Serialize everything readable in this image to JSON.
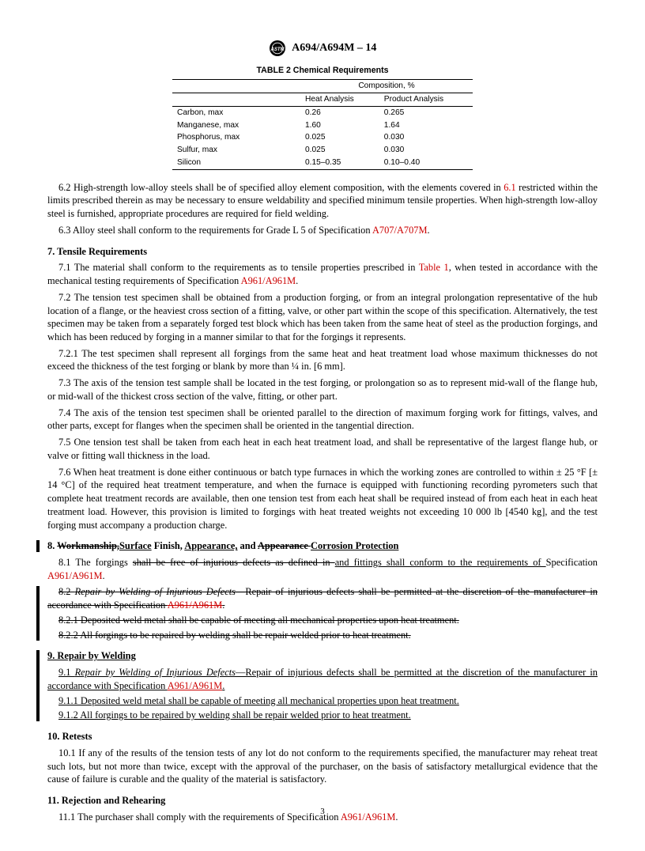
{
  "header": {
    "std": "A694/A694M – 14"
  },
  "table2": {
    "title": "TABLE 2 Chemical Requirements",
    "comp_label": "Composition, %",
    "col_heat": "Heat Analysis",
    "col_product": "Product Analysis",
    "rows": [
      {
        "name": "Carbon, max",
        "heat": "0.26",
        "product": "0.265"
      },
      {
        "name": "Manganese, max",
        "heat": "1.60",
        "product": "1.64"
      },
      {
        "name": "Phosphorus, max",
        "heat": "0.025",
        "product": "0.030"
      },
      {
        "name": "Sulfur, max",
        "heat": "0.025",
        "product": "0.030"
      },
      {
        "name": "Silicon",
        "heat": "0.15–0.35",
        "product": "0.10–0.40"
      }
    ]
  },
  "refs": {
    "r61": "6.1",
    "a707": "A707/A707M",
    "a961": "A961/A961M",
    "table1": "Table 1"
  },
  "p62a": "6.2 High-strength low-alloy steels shall be of specified alloy element composition, with the elements covered in ",
  "p62b": " restricted within the limits prescribed therein as may be necessary to ensure weldability and specified minimum tensile properties. When high-strength low-alloy steel is furnished, appropriate procedures are required for field welding.",
  "p63a": "6.3 Alloy steel shall conform to the requirements for Grade L 5 of Specification ",
  "s7": "7. Tensile Requirements",
  "p71a": "7.1 The material shall conform to the requirements as to tensile properties prescribed in ",
  "p71b": ", when tested in accordance with the mechanical testing requirements of Specification ",
  "p72": "7.2 The tension test specimen shall be obtained from a production forging, or from an integral prolongation representative of the hub location of a flange, or the heaviest cross section of a fitting, valve, or other part within the scope of this specification. Alternatively, the test specimen may be taken from a separately forged test block which has been taken from the same heat of steel as the production forgings, and which has been reduced by forging in a manner similar to that for the forgings it represents.",
  "p721": "7.2.1 The test specimen shall represent all forgings from the same heat and heat treatment load whose maximum thicknesses do not exceed the thickness of the test forging or blank by more than ¼ in. [6 mm].",
  "p73": "7.3 The axis of the tension test sample shall be located in the test forging, or prolongation so as to represent mid-wall of the flange hub, or mid-wall of the thickest cross section of the valve, fitting, or other part.",
  "p74": "7.4 The axis of the tension test specimen shall be oriented parallel to the direction of maximum forging work for fittings, valves, and other parts, except for flanges when the specimen shall be oriented in the tangential direction.",
  "p75": "7.5 One tension test shall be taken from each heat in each heat treatment load, and shall be representative of the largest flange hub, or valve or fitting wall thickness in the load.",
  "p76": "7.6 When heat treatment is done either continuous or batch type furnaces in which the working zones are controlled to within ± 25 °F [± 14 °C] of the required heat treatment temperature, and when the furnace is equipped with functioning recording pyrometers such that complete heat treatment records are available, then one tension test from each heat shall be required instead of from each heat in each heat treatment load. However, this provision is limited to forgings with heat treated weights not exceeding 10 000 lb [4540 kg], and the test forging must accompany a production charge.",
  "s8_num": "8. ",
  "s8_strike1": "Workmanship,",
  "s8_surface": "Surface",
  "s8_finish": " Finish, ",
  "s8_appear_u": "Appearance,",
  "s8_and": " and ",
  "s8_strike2": "Appearance ",
  "s8_corr": "Corrosion Protection",
  "p81a": "8.1 The forgings ",
  "p81s": "shall be free of injurious defects as defined in ",
  "p81u": "and fittings shall conform to the requirements of ",
  "p81b": "Specification ",
  "p82_lead": "8.2 ",
  "p82_i": "Repair by Welding of Injurious Defects",
  "p82_rest": "—Repair of injurious defects shall be permitted at the discretion of the manufacturer in accordance with Specification ",
  "p821": "8.2.1 Deposited weld metal shall be capable of meeting all mechanical properties upon heat treatment.",
  "p822": "8.2.2 All forgings to be repaired by welding shall be repair welded prior to heat treatment.",
  "s9": "9. Repair by Welding",
  "p91_lead": "9.1 ",
  "p91_i": "Repair by Welding of Injurious Defects",
  "p91_rest": "—Repair of injurious defects shall be permitted at the discretion of the manufacturer in accordance with Specification ",
  "p911": "9.1.1 Deposited weld metal shall be capable of meeting all mechanical properties upon heat treatment.",
  "p912": "9.1.2 All forgings to be repaired by welding shall be repair welded prior to heat treatment.",
  "s10": "10. Retests",
  "p101": "10.1 If any of the results of the tension tests of any lot do not conform to the requirements specified, the manufacturer may reheat treat such lots, but not more than twice, except with the approval of the purchaser, on the basis of satisfactory metallurgical evidence that the cause of failure is curable and the quality of the material is satisfactory.",
  "s11": "11. Rejection and Rehearing",
  "p111a": "11.1 The purchaser shall comply with the requirements of Specification ",
  "page_num": "3"
}
